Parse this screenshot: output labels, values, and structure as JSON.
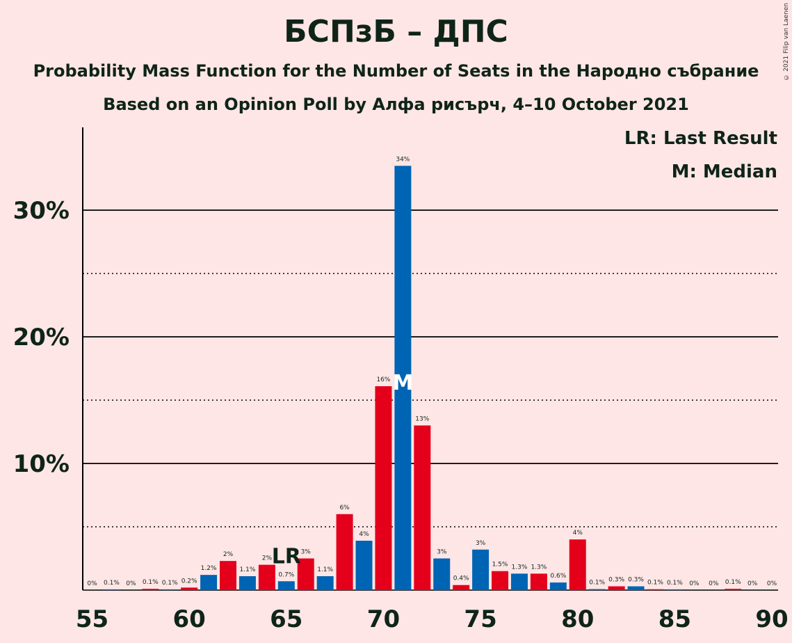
{
  "copyright": "© 2021 Filip van Laenen",
  "chart_data": {
    "type": "bar",
    "title": "БСПзБ – ДПС",
    "subtitle": "Probability Mass Function for the Number of Seats in the Народно събрание",
    "subtitle2": "Based on an Opinion Poll by Алфа рисърч, 4–10 October 2021",
    "xlim": [
      55,
      90
    ],
    "ylim": [
      0,
      36
    ],
    "y_ticks": [
      10,
      20,
      30
    ],
    "y_tick_labels": [
      "10%",
      "20%",
      "30%"
    ],
    "x_ticks": [
      55,
      60,
      65,
      70,
      75,
      80,
      85,
      90
    ],
    "x_tick_labels": [
      "55",
      "60",
      "65",
      "70",
      "75",
      "80",
      "85",
      "90"
    ],
    "grid": {
      "solid": [
        10,
        20,
        30
      ],
      "dotted": [
        5,
        15,
        25
      ]
    },
    "legend": {
      "position": "top-right",
      "entries": [
        "LR: Last Result",
        "M: Median"
      ]
    },
    "last_result": {
      "seat": 65,
      "label": "LR"
    },
    "median": {
      "seat": 71,
      "label": "M"
    },
    "colors": {
      "red": "#E4001B",
      "blue": "#0064B4",
      "background": "#FFE6E6",
      "text": "#0F2418"
    },
    "seats": [
      55,
      56,
      57,
      58,
      59,
      60,
      61,
      62,
      63,
      64,
      65,
      66,
      67,
      68,
      69,
      70,
      71,
      72,
      73,
      74,
      75,
      76,
      77,
      78,
      79,
      80,
      81,
      82,
      83,
      84,
      85,
      86,
      87,
      88,
      89,
      90
    ],
    "values": [
      0,
      0.06,
      0,
      0.1,
      0.06,
      0.2,
      1.2,
      2.3,
      1.1,
      2.0,
      0.7,
      2.5,
      1.1,
      6.0,
      3.9,
      16.1,
      33.5,
      13.0,
      2.5,
      0.4,
      3.2,
      1.5,
      1.3,
      1.3,
      0.6,
      4.0,
      0.08,
      0.3,
      0.3,
      0.07,
      0.06,
      0,
      0,
      0.1,
      0,
      0
    ],
    "value_labels": [
      "0%",
      "0.1%",
      "0%",
      "0.1%",
      "0.1%",
      "0.2%",
      "1.2%",
      "2%",
      "1.1%",
      "2%",
      "0.7%",
      "3%",
      "1.1%",
      "6%",
      "4%",
      "16%",
      "34%",
      "13%",
      "3%",
      "0.4%",
      "3%",
      "1.5%",
      "1.3%",
      "1.3%",
      "0.6%",
      "4%",
      "0.1%",
      "0.3%",
      "0.3%",
      "0.1%",
      "0.1%",
      "0%",
      "0%",
      "0.1%",
      "0%",
      "0%"
    ],
    "bar_colors": [
      "blue",
      "blue",
      "red",
      "red",
      "blue",
      "red",
      "blue",
      "red",
      "blue",
      "red",
      "blue",
      "red",
      "blue",
      "red",
      "blue",
      "red",
      "blue",
      "red",
      "blue",
      "red",
      "blue",
      "red",
      "blue",
      "red",
      "blue",
      "red",
      "blue",
      "red",
      "blue",
      "red",
      "blue",
      "red",
      "blue",
      "red",
      "blue",
      "red"
    ]
  }
}
